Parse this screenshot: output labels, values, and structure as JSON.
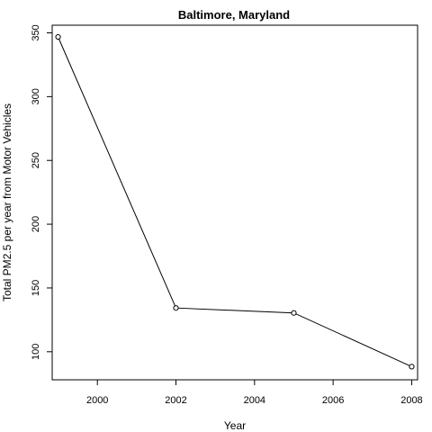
{
  "chart_data": {
    "type": "line",
    "title": "Baltimore, Maryland",
    "xlabel": "Year",
    "ylabel": "Total PM2.5 per year from Motor Vehicles",
    "x": [
      1999,
      2002,
      2005,
      2008
    ],
    "y": [
      346.8,
      134.3,
      130.4,
      88.3
    ],
    "xlim": [
      1998.85,
      2008.15
    ],
    "ylim": [
      78,
      356
    ],
    "xticks": [
      2000,
      2002,
      2004,
      2006,
      2008
    ],
    "yticks": [
      100,
      150,
      200,
      250,
      300,
      350
    ],
    "grid": false,
    "marker": "open-circle",
    "line_color": "#000000"
  }
}
